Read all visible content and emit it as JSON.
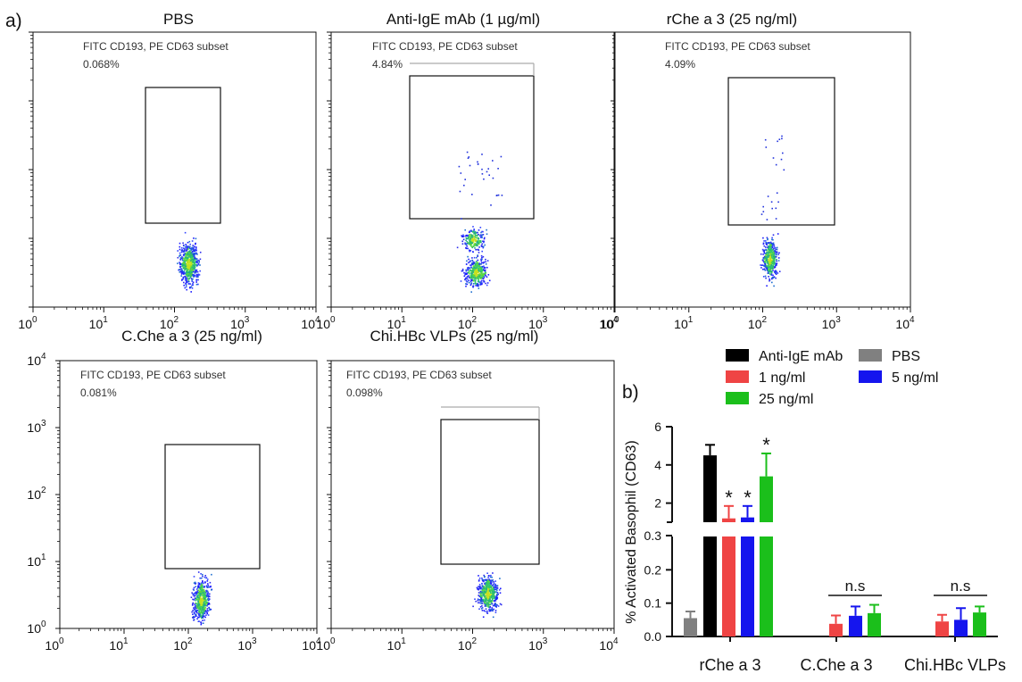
{
  "panel_a_label": "a)",
  "panel_b_label": "b)",
  "flow_plots": [
    {
      "title": "PBS",
      "gate_label": "FITC CD193, PE CD63 subset",
      "gate_percent": "0.068%"
    },
    {
      "title": "Anti-IgE mAb (1 µg/ml)",
      "gate_label": "FITC CD193, PE CD63 subset",
      "gate_percent": "4.84%"
    },
    {
      "title": "rChe a 3 (25 ng/ml)",
      "gate_label": "FITC CD193, PE CD63 subset",
      "gate_percent": "4.09%"
    },
    {
      "title": "C.Che a 3 (25 ng/ml)",
      "gate_label": "FITC CD193, PE CD63 subset",
      "gate_percent": "0.081%"
    },
    {
      "title": "Chi.HBc VLPs (25 ng/ml)",
      "gate_label": "FITC CD193, PE CD63 subset",
      "gate_percent": "0.098%"
    }
  ],
  "x_ticks": [
    {
      "base": "10",
      "exp": "0"
    },
    {
      "base": "10",
      "exp": "1"
    },
    {
      "base": "10",
      "exp": "2"
    },
    {
      "base": "10",
      "exp": "3"
    },
    {
      "base": "10",
      "exp": "4"
    }
  ],
  "y_ticks": [
    {
      "base": "10",
      "exp": "0"
    },
    {
      "base": "10",
      "exp": "1"
    },
    {
      "base": "10",
      "exp": "2"
    },
    {
      "base": "10",
      "exp": "3"
    },
    {
      "base": "10",
      "exp": "4"
    }
  ],
  "chart_data": {
    "type": "bar",
    "ylabel": "% Activated Basophil (CD63)",
    "categories": [
      "rChe a 3",
      "C.Che a 3",
      "Chi.HBc VLPs"
    ],
    "y_broken_axis": {
      "lower_range": [
        0,
        0.3
      ],
      "upper_range": [
        1,
        6
      ]
    },
    "lower_ticks": [
      "0.0",
      "0.1",
      "0.2",
      "0.3"
    ],
    "upper_ticks": [
      "2",
      "4",
      "6"
    ],
    "legend": [
      {
        "name": "Anti-IgE mAb",
        "color": "#000000"
      },
      {
        "name": "PBS",
        "color": "#808080"
      },
      {
        "name": "1 ng/ml",
        "color": "#ef4444"
      },
      {
        "name": "5 ng/ml",
        "color": "#1515ee"
      },
      {
        "name": "25 ng/ml",
        "color": "#1bbf1b"
      }
    ],
    "bars": [
      {
        "category": "rChe a 3",
        "series": "PBS",
        "color": "#808080",
        "value": 0.055,
        "error": 0.02,
        "label": ""
      },
      {
        "category": "rChe a 3",
        "series": "Anti-IgE mAb",
        "color": "#000000",
        "value": 4.5,
        "error": 0.55,
        "label": ""
      },
      {
        "category": "rChe a 3",
        "series": "1 ng/ml",
        "color": "#ef4444",
        "value": 1.2,
        "error": 0.65,
        "label": "*"
      },
      {
        "category": "rChe a 3",
        "series": "5 ng/ml",
        "color": "#1515ee",
        "value": 1.25,
        "error": 0.6,
        "label": "*"
      },
      {
        "category": "rChe a 3",
        "series": "25 ng/ml",
        "color": "#1bbf1b",
        "value": 3.4,
        "error": 1.2,
        "label": "*"
      },
      {
        "category": "C.Che a 3",
        "series": "1 ng/ml",
        "color": "#ef4444",
        "value": 0.038,
        "error": 0.025,
        "label": ""
      },
      {
        "category": "C.Che a 3",
        "series": "5 ng/ml",
        "color": "#1515ee",
        "value": 0.062,
        "error": 0.028,
        "label": ""
      },
      {
        "category": "C.Che a 3",
        "series": "25 ng/ml",
        "color": "#1bbf1b",
        "value": 0.07,
        "error": 0.025,
        "label": ""
      },
      {
        "category": "Chi.HBc VLPs",
        "series": "1 ng/ml",
        "color": "#ef4444",
        "value": 0.045,
        "error": 0.02,
        "label": ""
      },
      {
        "category": "Chi.HBc VLPs",
        "series": "5 ng/ml",
        "color": "#1515ee",
        "value": 0.05,
        "error": 0.035,
        "label": ""
      },
      {
        "category": "Chi.HBc VLPs",
        "series": "25 ng/ml",
        "color": "#1bbf1b",
        "value": 0.072,
        "error": 0.018,
        "label": ""
      }
    ],
    "annotations": [
      {
        "category": "C.Che a 3",
        "text": "n.s"
      },
      {
        "category": "Chi.HBc VLPs",
        "text": "n.s"
      }
    ]
  }
}
